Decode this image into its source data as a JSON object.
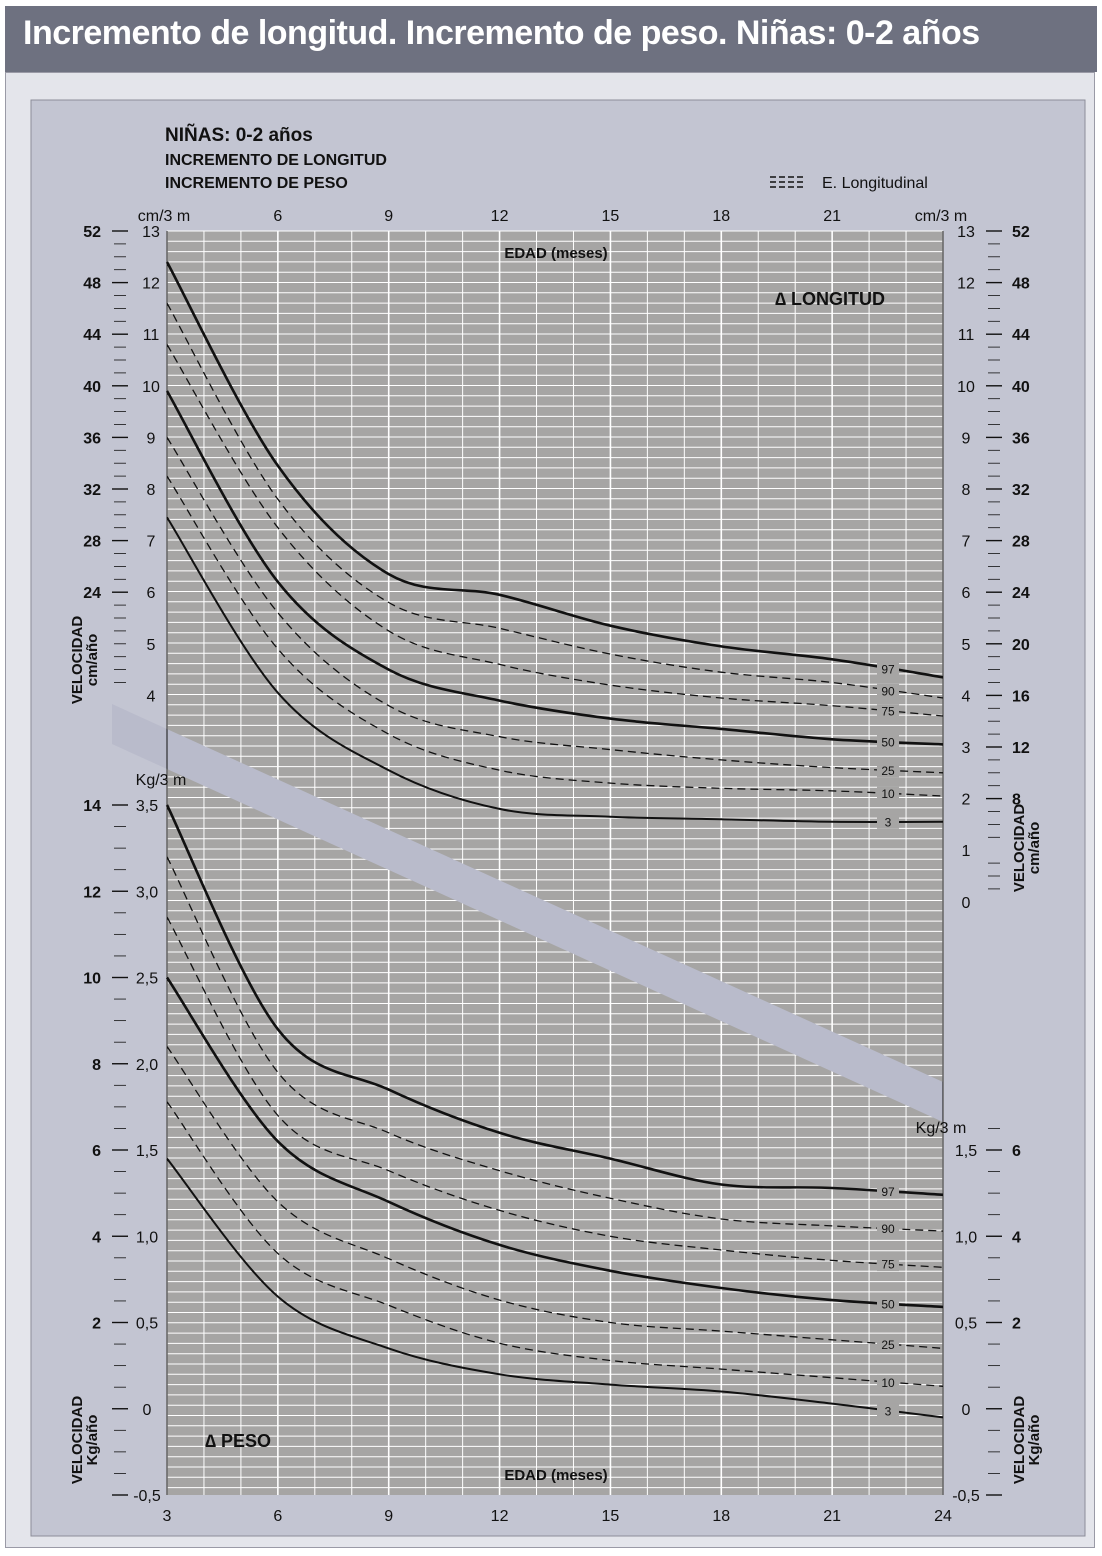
{
  "page": {
    "title": "Incremento de longitud. Incremento de peso. Niñas: 0-2 años"
  },
  "chart_data": {
    "type": "line",
    "header": {
      "line1": "NIÑAS: 0-2 años",
      "line2": "INCREMENTO DE LONGITUD",
      "line3": "INCREMENTO DE PESO"
    },
    "legend": {
      "label": "E. Longitudinal",
      "position": "top-right"
    },
    "x": [
      3,
      6,
      9,
      12,
      15,
      18,
      21,
      24
    ],
    "xlabel": "EDAD (meses)",
    "xlim": [
      3,
      24
    ],
    "x_unit_label": "cm/3 m",
    "grid": true,
    "colors": {
      "plot_bg": "#a6a5a4",
      "grid": "#ffffff",
      "band": "#b9bbcb",
      "panel": "#c3c5d2",
      "ink": "#111111"
    },
    "longitud": {
      "label": "∆ LONGITUD",
      "unit_left": "cm/3 m",
      "unit_right": "cm/3 m",
      "axis_title": "VELOCIDAD",
      "axis_unit": "cm/año",
      "ylim": [
        0,
        13
      ],
      "ticks_cm3m": [
        13,
        12,
        11,
        10,
        9,
        8,
        7,
        6,
        5,
        4
      ],
      "ticks_cm3m_right": [
        13,
        12,
        11,
        10,
        9,
        8,
        7,
        6,
        5,
        4,
        3,
        2,
        1,
        0
      ],
      "ticks_cmyear_left": [
        52,
        48,
        44,
        40,
        36,
        32,
        28,
        24
      ],
      "ticks_cmyear_right": [
        52,
        48,
        44,
        40,
        36,
        32,
        28,
        24,
        20,
        16,
        12,
        8
      ],
      "series": [
        {
          "name": "97",
          "style": "solid-bold",
          "values": [
            12.4,
            8.45,
            6.35,
            5.95,
            5.35,
            4.95,
            4.7,
            4.35
          ]
        },
        {
          "name": "90",
          "style": "dashed",
          "values": [
            11.6,
            7.8,
            5.8,
            5.3,
            4.8,
            4.45,
            4.25,
            3.95
          ]
        },
        {
          "name": "75",
          "style": "dashed",
          "values": [
            10.8,
            7.25,
            5.25,
            4.6,
            4.2,
            3.95,
            3.8,
            3.6
          ]
        },
        {
          "name": "50",
          "style": "solid-bold",
          "values": [
            9.9,
            6.2,
            4.5,
            3.9,
            3.55,
            3.35,
            3.15,
            3.05
          ]
        },
        {
          "name": "25",
          "style": "dashed",
          "values": [
            9.0,
            5.6,
            3.8,
            3.2,
            2.95,
            2.75,
            2.6,
            2.5
          ]
        },
        {
          "name": "10",
          "style": "dashed",
          "values": [
            8.25,
            4.9,
            3.25,
            2.55,
            2.3,
            2.2,
            2.15,
            2.05
          ]
        },
        {
          "name": "3",
          "style": "solid",
          "values": [
            7.45,
            4.05,
            2.55,
            1.8,
            1.65,
            1.6,
            1.55,
            1.55
          ]
        }
      ]
    },
    "peso": {
      "label": "∆ PESO",
      "unit_left": "Kg/3 m",
      "unit_right": "Kg/3 m",
      "axis_title": "VELOCIDAD",
      "axis_unit": "Kg/año",
      "ylim": [
        -0.5,
        3.5
      ],
      "ticks_kg3m": [
        "3,5",
        "3,0",
        "2,5",
        "2,0",
        "1,5",
        "1,0",
        "0,5",
        "0",
        "-0,5"
      ],
      "ticks_kg3m_right": [
        "1,5",
        "1,0",
        "0,5",
        "0",
        "-0,5"
      ],
      "ticks_kgyear_left": [
        14,
        12,
        10,
        8,
        6,
        4,
        2
      ],
      "ticks_kgyear_right": [
        6,
        4,
        2
      ],
      "series": [
        {
          "name": "97",
          "style": "solid-bold",
          "values": [
            3.5,
            2.2,
            1.85,
            1.6,
            1.45,
            1.3,
            1.28,
            1.24
          ]
        },
        {
          "name": "90",
          "style": "dashed",
          "values": [
            3.2,
            1.95,
            1.6,
            1.38,
            1.22,
            1.1,
            1.06,
            1.03
          ]
        },
        {
          "name": "75",
          "style": "dashed",
          "values": [
            2.85,
            1.7,
            1.38,
            1.15,
            1.0,
            0.92,
            0.86,
            0.82
          ]
        },
        {
          "name": "50",
          "style": "solid-bold",
          "values": [
            2.5,
            1.55,
            1.2,
            0.95,
            0.8,
            0.7,
            0.63,
            0.59
          ]
        },
        {
          "name": "25",
          "style": "dashed",
          "values": [
            2.1,
            1.2,
            0.87,
            0.63,
            0.5,
            0.45,
            0.4,
            0.35
          ]
        },
        {
          "name": "10",
          "style": "dashed",
          "values": [
            1.78,
            0.9,
            0.6,
            0.38,
            0.28,
            0.23,
            0.18,
            0.13
          ]
        },
        {
          "name": "3",
          "style": "solid",
          "values": [
            1.45,
            0.65,
            0.35,
            0.2,
            0.14,
            0.1,
            0.03,
            -0.05
          ]
        }
      ]
    }
  }
}
